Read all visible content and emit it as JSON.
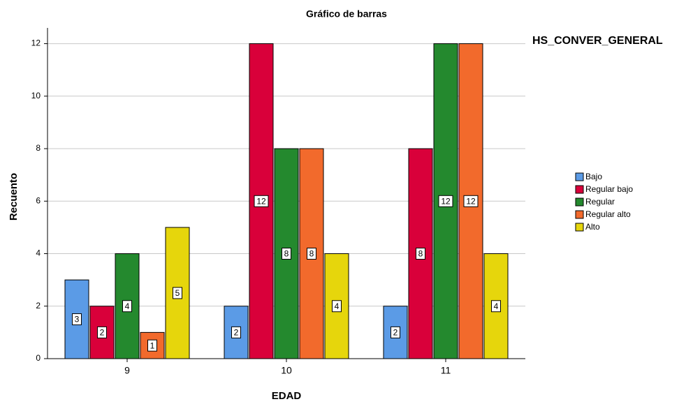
{
  "chart_data": {
    "type": "bar",
    "title": "Gráfico de barras",
    "x_label": "EDAD",
    "y_label": "Recuento",
    "legend_title": "HS_CONVER_GENERAL",
    "legend": "right",
    "grid": true,
    "categories": [
      "9",
      "10",
      "11"
    ],
    "series": [
      {
        "name": "Bajo",
        "color": "#5b9be6",
        "values": [
          3,
          2,
          2
        ]
      },
      {
        "name": "Regular bajo",
        "color": "#d9003a",
        "values": [
          2,
          12,
          8
        ]
      },
      {
        "name": "Regular",
        "color": "#24892e",
        "values": [
          4,
          8,
          12
        ]
      },
      {
        "name": "Regular alto",
        "color": "#f26a2c",
        "values": [
          1,
          8,
          12
        ]
      },
      {
        "name": "Alto",
        "color": "#e6d60c",
        "values": [
          5,
          4,
          4
        ]
      }
    ],
    "ylim": [
      0,
      12.6
    ],
    "yticks": [
      0,
      2,
      4,
      6,
      8,
      10,
      12
    ]
  }
}
